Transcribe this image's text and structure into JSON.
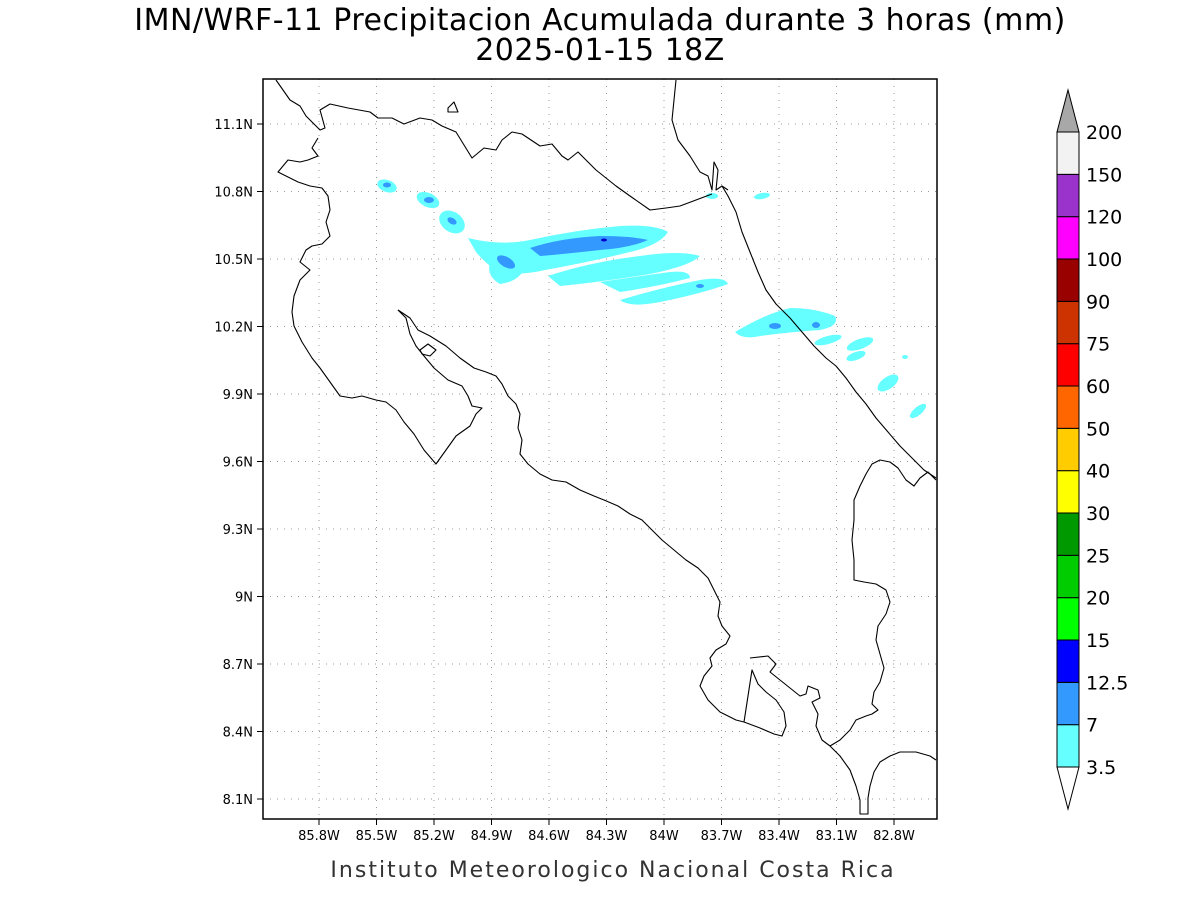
{
  "title": {
    "line1": "IMN/WRF-11 Precipitacion Acumulada durante 3 horas (mm)",
    "line2": "2025-01-15 18Z"
  },
  "footer": "Instituto Meteorologico Nacional Costa Rica",
  "axes": {
    "lon_labels": [
      "85.8W",
      "85.5W",
      "85.2W",
      "84.9W",
      "84.6W",
      "84.3W",
      "84W",
      "83.7W",
      "83.4W",
      "83.1W",
      "82.8W"
    ],
    "lat_labels": [
      "11.1N",
      "10.8N",
      "10.5N",
      "10.2N",
      "9.9N",
      "9.6N",
      "9.3N",
      "9N",
      "8.7N",
      "8.4N",
      "8.1N"
    ],
    "grid": "dotted",
    "lon_range": [
      "86.05W",
      "83.05W"
    ],
    "lat_range": [
      "8.0N",
      "11.3N"
    ]
  },
  "colorbar": {
    "orientation": "vertical",
    "extend": "both",
    "levels": [
      "3.5",
      "7",
      "12.5",
      "15",
      "20",
      "25",
      "30",
      "40",
      "50",
      "60",
      "75",
      "90",
      "100",
      "120",
      "150",
      "200"
    ],
    "colors": [
      "#66ffff",
      "#3399ff",
      "#0000ff",
      "#00ff00",
      "#00cc00",
      "#009900",
      "#ffff00",
      "#ffcc00",
      "#ff6600",
      "#ff0000",
      "#cc3300",
      "#990000",
      "#ff00ff",
      "#9933cc",
      "#f2f2f2"
    ],
    "under_color": "#ffffff",
    "over_color": "#a8a8a8"
  },
  "precip_colors": {
    "light": "#66ffff",
    "moderate": "#3399ff",
    "heavy": "#0000cc"
  }
}
